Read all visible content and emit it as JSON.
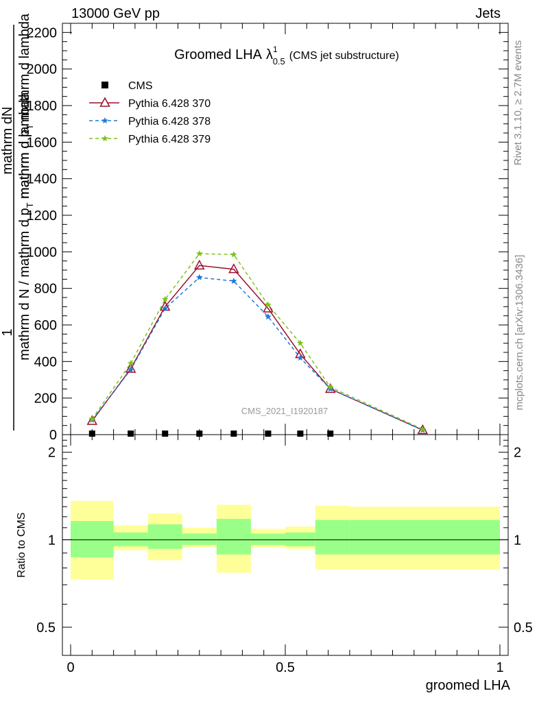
{
  "header": {
    "left": "13000 GeV pp",
    "right": "Jets"
  },
  "side_text": {
    "rivet": "Rivet 3.1.10, ≥ 2.7M events",
    "mcplots": "mcplots.cern.ch [arXiv:1306.3436]"
  },
  "chart_data": [
    {
      "type": "line",
      "title": "Groomed LHA",
      "title_symbol": "λ",
      "title_sup": "1",
      "title_sub": "0.5",
      "title_suffix": "(CMS jet substructure)",
      "watermark": "CMS_2021_I1920187",
      "ylabel_parts": [
        "1",
        "mathrm d N / mathrm d p",
        "T",
        " mathrm d lambda",
        "mathrm dN",
        "mathrm d p",
        "T",
        " mathrm d lambda"
      ],
      "ylim": [
        0,
        2250
      ],
      "xlim": [
        0,
        1
      ],
      "yticks": [
        0,
        200,
        400,
        600,
        800,
        1000,
        1200,
        1400,
        1600,
        1800,
        2000,
        2200
      ],
      "legend_position": "top-left",
      "series": [
        {
          "name": "CMS",
          "color": "#000000",
          "marker": "square",
          "x": [
            0.05,
            0.14,
            0.22,
            0.3,
            0.38,
            0.46,
            0.535,
            0.605
          ],
          "y": [
            0,
            0,
            0,
            0,
            0,
            0,
            0,
            0
          ]
        },
        {
          "name": "Pythia 6.428 370",
          "color": "#9b0e2b",
          "marker": "triangle-open",
          "dash": "solid",
          "x": [
            0.05,
            0.14,
            0.22,
            0.3,
            0.38,
            0.46,
            0.535,
            0.605,
            0.82
          ],
          "y": [
            75,
            360,
            700,
            925,
            905,
            690,
            440,
            250,
            25
          ]
        },
        {
          "name": "Pythia 6.428 378",
          "color": "#1e78d7",
          "marker": "star",
          "dash": "dashed",
          "x": [
            0.05,
            0.14,
            0.22,
            0.3,
            0.38,
            0.46,
            0.535,
            0.605,
            0.82
          ],
          "y": [
            80,
            355,
            690,
            860,
            840,
            645,
            420,
            250,
            25
          ]
        },
        {
          "name": "Pythia 6.428 379",
          "color": "#7cc21b",
          "marker": "star",
          "dash": "dashed",
          "x": [
            0.05,
            0.14,
            0.22,
            0.3,
            0.38,
            0.46,
            0.535,
            0.605,
            0.82
          ],
          "y": [
            85,
            390,
            740,
            990,
            985,
            710,
            500,
            260,
            30
          ]
        }
      ]
    },
    {
      "type": "area",
      "ylabel": "Ratio to CMS",
      "xlabel": "groomed LHA",
      "xlim": [
        0,
        1
      ],
      "ylim": [
        0.4,
        2.3
      ],
      "log_scale_y": true,
      "yticks": [
        0.5,
        1,
        2
      ],
      "xticks": [
        0,
        0.5,
        1
      ],
      "xtick_labels": [
        "0",
        "0.5",
        "1"
      ],
      "reference_line": 1,
      "bands": [
        {
          "x": [
            0.0,
            0.1
          ],
          "inner": [
            0.87,
            1.16
          ],
          "outer": [
            0.73,
            1.36
          ]
        },
        {
          "x": [
            0.1,
            0.18
          ],
          "inner": [
            0.95,
            1.06
          ],
          "outer": [
            0.92,
            1.12
          ]
        },
        {
          "x": [
            0.18,
            0.26
          ],
          "inner": [
            0.93,
            1.13
          ],
          "outer": [
            0.85,
            1.23
          ]
        },
        {
          "x": [
            0.26,
            0.34
          ],
          "inner": [
            0.96,
            1.05
          ],
          "outer": [
            0.94,
            1.1
          ]
        },
        {
          "x": [
            0.34,
            0.42
          ],
          "inner": [
            0.89,
            1.18
          ],
          "outer": [
            0.77,
            1.32
          ]
        },
        {
          "x": [
            0.42,
            0.5
          ],
          "inner": [
            0.96,
            1.05
          ],
          "outer": [
            0.94,
            1.09
          ]
        },
        {
          "x": [
            0.5,
            0.57
          ],
          "inner": [
            0.95,
            1.06
          ],
          "outer": [
            0.93,
            1.11
          ]
        },
        {
          "x": [
            0.57,
            0.65
          ],
          "inner": [
            0.89,
            1.17
          ],
          "outer": [
            0.79,
            1.31
          ]
        },
        {
          "x": [
            0.65,
            1.0
          ],
          "inner": [
            0.89,
            1.17
          ],
          "outer": [
            0.79,
            1.3
          ]
        }
      ],
      "inner_color": "#99ff88",
      "outer_color": "#ffff99"
    }
  ]
}
